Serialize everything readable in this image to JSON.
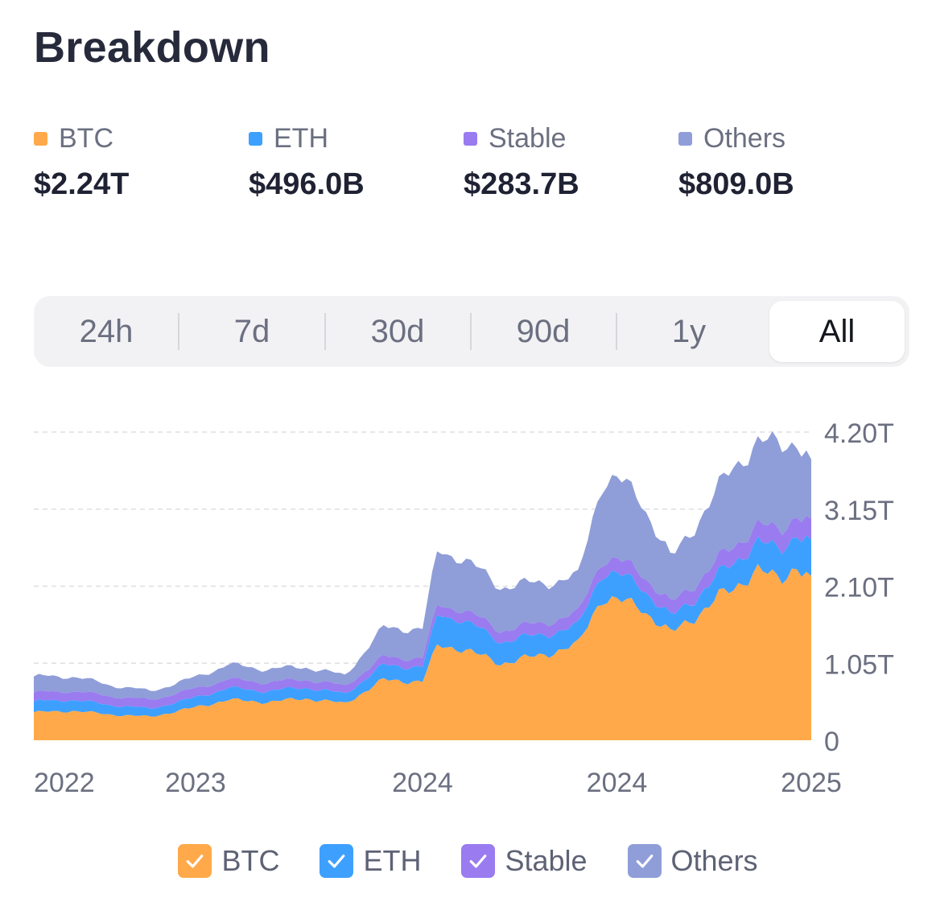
{
  "header": {
    "title": "Breakdown"
  },
  "stats": [
    {
      "label": "BTC",
      "value": "$2.24T",
      "color": "#ffa94a"
    },
    {
      "label": "ETH",
      "value": "$496.0B",
      "color": "#3da0ff"
    },
    {
      "label": "Stable",
      "value": "$283.7B",
      "color": "#9a7bf0"
    },
    {
      "label": "Others",
      "value": "$809.0B",
      "color": "#8f9ed8"
    }
  ],
  "tabs": [
    {
      "label": "24h",
      "active": false
    },
    {
      "label": "7d",
      "active": false
    },
    {
      "label": "30d",
      "active": false
    },
    {
      "label": "90d",
      "active": false
    },
    {
      "label": "1y",
      "active": false
    },
    {
      "label": "All",
      "active": true
    }
  ],
  "legend": [
    {
      "label": "BTC",
      "color": "#ffa94a",
      "checked": true,
      "icon": "check-icon"
    },
    {
      "label": "ETH",
      "color": "#3da0ff",
      "checked": true,
      "icon": "check-icon"
    },
    {
      "label": "Stable",
      "color": "#9a7bf0",
      "checked": true,
      "icon": "check-icon"
    },
    {
      "label": "Others",
      "color": "#8f9ed8",
      "checked": true,
      "icon": "check-icon"
    }
  ],
  "chart_data": {
    "type": "area",
    "stacked": true,
    "title": "",
    "xlabel": "",
    "ylabel": "",
    "ylim": [
      0,
      4.2
    ],
    "y_unit": "T",
    "y_ticks": [
      0,
      1.05,
      2.1,
      3.15,
      4.2
    ],
    "y_tick_labels": [
      "0",
      "1.05T",
      "2.10T",
      "3.15T",
      "4.20T"
    ],
    "x_tick_labels": [
      "2022",
      "2023",
      "2024",
      "2024",
      "2025"
    ],
    "x": [
      0,
      0.05,
      0.1,
      0.15,
      0.2,
      0.25,
      0.3,
      0.35,
      0.4,
      0.45,
      0.5,
      0.52,
      0.55,
      0.6,
      0.65,
      0.7,
      0.73,
      0.75,
      0.78,
      0.82,
      0.85,
      0.88,
      0.9,
      0.93,
      0.96,
      0.98,
      1.0
    ],
    "series": [
      {
        "name": "BTC",
        "color": "#ffa94a",
        "values": [
          0.38,
          0.4,
          0.35,
          0.32,
          0.43,
          0.55,
          0.52,
          0.57,
          0.5,
          0.82,
          0.8,
          1.3,
          1.25,
          1.05,
          1.15,
          1.3,
          1.95,
          1.9,
          1.82,
          1.45,
          1.68,
          1.95,
          2.05,
          2.35,
          2.15,
          2.4,
          2.24
        ]
      },
      {
        "name": "ETH",
        "color": "#3da0ff",
        "values": [
          0.15,
          0.15,
          0.13,
          0.11,
          0.13,
          0.16,
          0.15,
          0.15,
          0.13,
          0.2,
          0.2,
          0.42,
          0.4,
          0.3,
          0.28,
          0.25,
          0.35,
          0.35,
          0.3,
          0.22,
          0.25,
          0.3,
          0.35,
          0.38,
          0.4,
          0.45,
          0.496
        ]
      },
      {
        "name": "Stable",
        "color": "#9a7bf0",
        "values": [
          0.12,
          0.12,
          0.12,
          0.12,
          0.12,
          0.12,
          0.12,
          0.11,
          0.11,
          0.11,
          0.12,
          0.13,
          0.14,
          0.15,
          0.16,
          0.17,
          0.18,
          0.19,
          0.19,
          0.18,
          0.2,
          0.21,
          0.22,
          0.24,
          0.25,
          0.27,
          0.2837
        ]
      },
      {
        "name": "Others",
        "color": "#8f9ed8",
        "values": [
          0.22,
          0.2,
          0.15,
          0.12,
          0.15,
          0.2,
          0.18,
          0.17,
          0.14,
          0.4,
          0.4,
          0.75,
          0.7,
          0.6,
          0.55,
          0.5,
          1.05,
          1.1,
          1.0,
          0.6,
          0.8,
          0.95,
          1.1,
          1.1,
          1.2,
          1.0,
          0.809
        ]
      }
    ]
  }
}
